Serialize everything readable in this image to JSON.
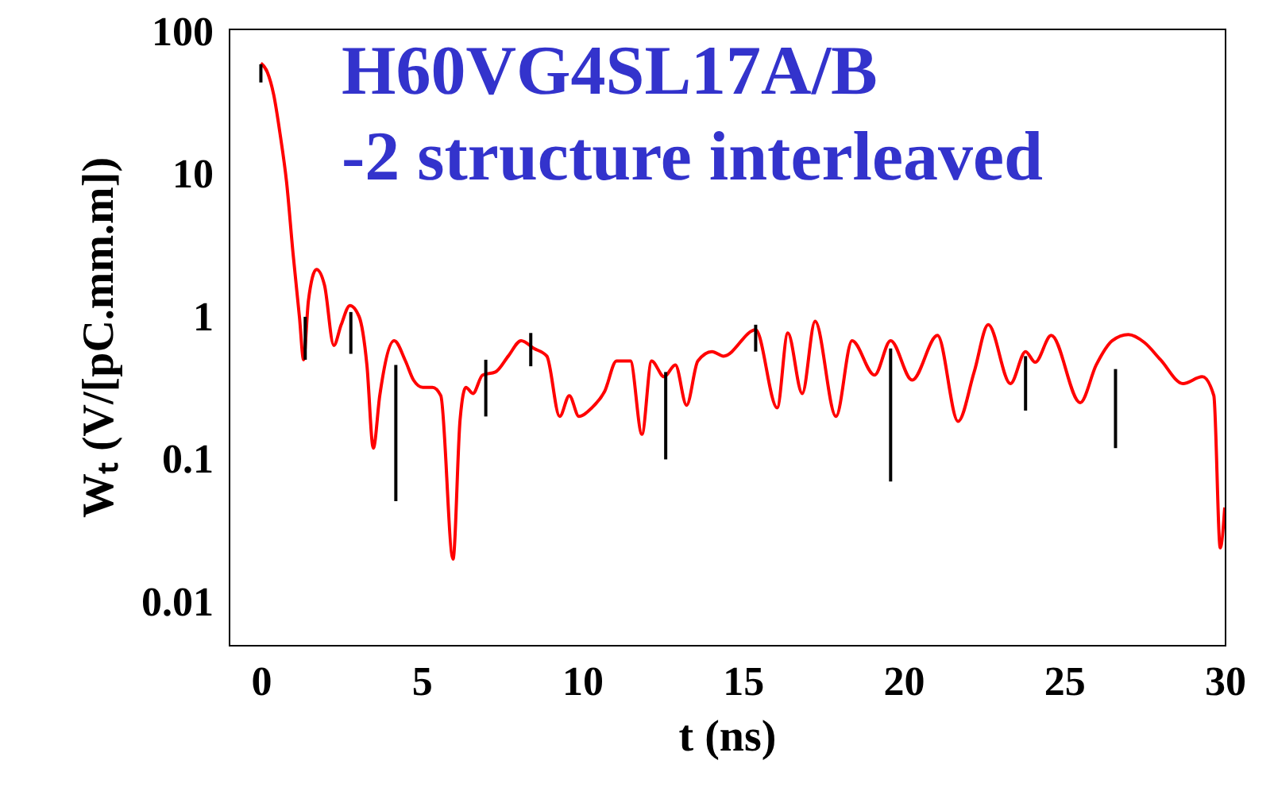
{
  "chart_data": {
    "type": "line",
    "title": "H60VG4SL17A/B",
    "subtitle": "-2 structure interleaved",
    "xlabel": "t (ns)",
    "ylabel": "Wₜ (V/[pC.mm.m])",
    "log": true,
    "grid": false,
    "xlim": [
      -1,
      30
    ],
    "xticks": [
      0,
      5,
      10,
      15,
      20,
      25,
      30
    ],
    "ylim": [
      0.005,
      105
    ],
    "yticks": [
      0.01,
      0.1,
      1,
      10,
      100
    ],
    "series": [
      {
        "color": "#ff0000",
        "x": [
          0,
          0.2,
          0.4,
          0.6,
          0.8,
          1.0,
          1.2,
          1.33,
          1.48,
          1.73,
          1.98,
          2.27,
          2.5,
          2.77,
          3.06,
          3.3,
          3.5,
          3.7,
          4.15,
          4.5,
          4.75,
          5.04,
          5.34,
          5.6,
          5.98,
          6.2,
          6.38,
          6.6,
          6.9,
          7.3,
          7.7,
          8.1,
          8.5,
          8.9,
          9.3,
          9.6,
          9.9,
          10.3,
          10.7,
          11.07,
          11.5,
          11.86,
          12.16,
          12.55,
          12.9,
          13.25,
          13.6,
          14.04,
          14.4,
          15.4,
          16.07,
          16.4,
          16.85,
          17.25,
          17.9,
          18.4,
          19.1,
          19.6,
          20.27,
          21.06,
          21.7,
          22.2,
          22.64,
          23.33,
          23.8,
          24.1,
          24.6,
          25.5,
          26.0,
          26.5,
          27.0,
          27.5,
          28.0,
          28.7,
          29.3,
          29.66,
          29.86,
          30
        ],
        "values": [
          60,
          52,
          36,
          19,
          8.8,
          2.8,
          1.0,
          0.5,
          1.3,
          2.15,
          1.67,
          0.63,
          0.88,
          1.2,
          1.0,
          0.46,
          0.12,
          0.28,
          0.68,
          0.49,
          0.36,
          0.32,
          0.32,
          0.28,
          0.02,
          0.19,
          0.32,
          0.29,
          0.39,
          0.41,
          0.53,
          0.68,
          0.6,
          0.53,
          0.2,
          0.28,
          0.2,
          0.23,
          0.3,
          0.49,
          0.49,
          0.15,
          0.49,
          0.38,
          0.46,
          0.24,
          0.49,
          0.57,
          0.53,
          0.81,
          0.23,
          0.77,
          0.29,
          0.93,
          0.2,
          0.68,
          0.39,
          0.68,
          0.36,
          0.74,
          0.185,
          0.41,
          0.88,
          0.34,
          0.57,
          0.48,
          0.74,
          0.25,
          0.46,
          0.68,
          0.75,
          0.66,
          0.5,
          0.34,
          0.38,
          0.28,
          0.024,
          0.046
        ]
      },
      {
        "type": "bar",
        "color": "#000000",
        "x": [
          0,
          1.38,
          2.8,
          4.2,
          7.0,
          8.4,
          12.6,
          15.4,
          19.6,
          23.8,
          26.6
        ],
        "base": [
          44,
          0.5,
          0.55,
          0.051,
          0.2,
          0.45,
          0.1,
          0.57,
          0.07,
          0.22,
          0.12
        ],
        "values": [
          15,
          0.5,
          0.53,
          0.409,
          0.3,
          0.32,
          0.31,
          0.31,
          0.53,
          0.31,
          0.31
        ]
      }
    ]
  }
}
